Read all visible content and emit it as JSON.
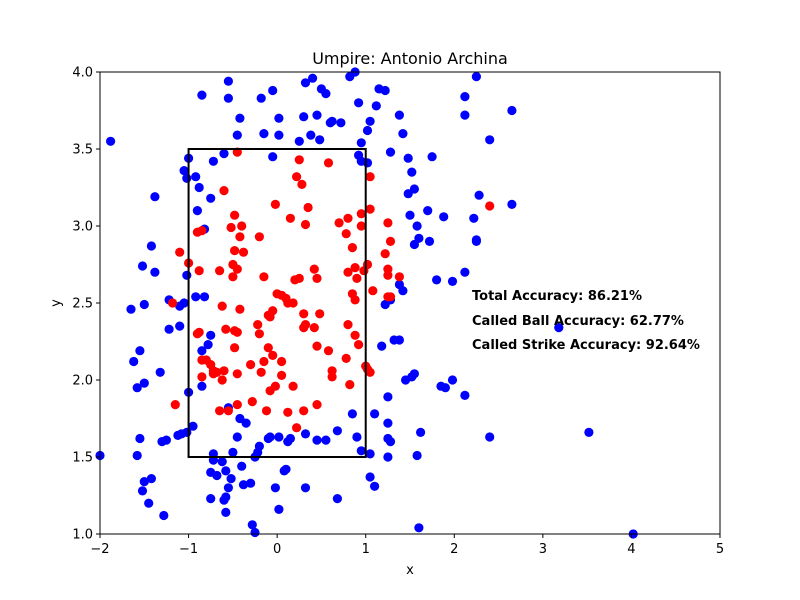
{
  "chart_data": {
    "type": "scatter",
    "title": "Umpire: Antonio Archina",
    "xlabel": "x",
    "ylabel": "y",
    "xlim": [
      -2,
      5
    ],
    "ylim": [
      1.0,
      4.0
    ],
    "x_ticks": [
      -2,
      -1,
      0,
      1,
      2,
      3,
      4,
      5
    ],
    "x_tick_labels": [
      "−2",
      "−1",
      "0",
      "1",
      "2",
      "3",
      "4",
      "5"
    ],
    "y_ticks": [
      1.0,
      1.5,
      2.0,
      2.5,
      3.0,
      3.5,
      4.0
    ],
    "y_tick_labels": [
      "1.0",
      "1.5",
      "2.0",
      "2.5",
      "3.0",
      "3.5",
      "4.0"
    ],
    "grid": false,
    "strike_zone": {
      "x": [
        -1,
        1
      ],
      "y": [
        1.5,
        3.5
      ],
      "color": "#000000"
    },
    "annotations": [
      "Total Accuracy: 86.21%",
      "Called Ball Accuracy: 62.77%",
      "Called Strike Accuracy: 92.64%"
    ],
    "colors": {
      "blue": "#0000ff",
      "red": "#ff0000"
    },
    "series": [
      {
        "color": "#0000ff",
        "points": [
          [
            -1.88,
            3.55
          ],
          [
            -1.52,
            2.74
          ],
          [
            -1.42,
            2.87
          ],
          [
            -1.38,
            2.7
          ],
          [
            -1.38,
            3.19
          ],
          [
            -1.5,
            2.49
          ],
          [
            -1.65,
            2.46
          ],
          [
            -1.55,
            2.19
          ],
          [
            -1.58,
            1.95
          ],
          [
            -1.5,
            1.98
          ],
          [
            -1.62,
            2.12
          ],
          [
            -1.55,
            1.62
          ],
          [
            -1.58,
            1.51
          ],
          [
            -2.0,
            1.51
          ],
          [
            -1.52,
            1.28
          ],
          [
            -1.5,
            1.34
          ],
          [
            -1.42,
            1.36
          ],
          [
            -1.45,
            1.2
          ],
          [
            -1.28,
            1.12
          ],
          [
            -1.3,
            1.6
          ],
          [
            -1.25,
            1.61
          ],
          [
            -1.32,
            2.05
          ],
          [
            -1.22,
            2.52
          ],
          [
            -1.22,
            2.33
          ],
          [
            -1.1,
            2.48
          ],
          [
            -1.1,
            2.35
          ],
          [
            -1.08,
            1.65
          ],
          [
            -1.02,
            1.66
          ],
          [
            -1.0,
            1.92
          ],
          [
            -1.12,
            1.64
          ],
          [
            -0.95,
            1.7
          ],
          [
            -1.02,
            2.68
          ],
          [
            -1.05,
            2.5
          ],
          [
            -1.05,
            3.36
          ],
          [
            -1.02,
            3.31
          ],
          [
            -1.0,
            3.44
          ],
          [
            -0.92,
            3.32
          ],
          [
            -0.88,
            3.25
          ],
          [
            -0.9,
            3.1
          ],
          [
            -0.85,
            3.85
          ],
          [
            -0.82,
            2.54
          ],
          [
            -0.92,
            2.54
          ],
          [
            -0.82,
            2.98
          ],
          [
            -0.75,
            3.18
          ],
          [
            -0.72,
            3.42
          ],
          [
            -0.6,
            3.47
          ],
          [
            -0.55,
            3.83
          ],
          [
            -0.55,
            3.94
          ],
          [
            -0.45,
            3.59
          ],
          [
            -0.42,
            3.7
          ],
          [
            -0.75,
            2.29
          ],
          [
            -0.85,
            2.19
          ],
          [
            -0.78,
            2.23
          ],
          [
            -0.85,
            1.96
          ],
          [
            -0.72,
            1.52
          ],
          [
            -0.75,
            1.4
          ],
          [
            -0.68,
            1.38
          ],
          [
            -0.72,
            1.48
          ],
          [
            -0.62,
            1.47
          ],
          [
            -0.58,
            1.41
          ],
          [
            -0.5,
            1.53
          ],
          [
            -0.55,
            1.82
          ],
          [
            -0.45,
            1.63
          ],
          [
            -0.42,
            1.75
          ],
          [
            -0.4,
            1.44
          ],
          [
            -0.38,
            1.32
          ],
          [
            -0.3,
            1.33
          ],
          [
            -0.25,
            1.5
          ],
          [
            -0.22,
            1.53
          ],
          [
            -0.55,
            1.3
          ],
          [
            -0.58,
            1.24
          ],
          [
            -0.6,
            1.22
          ],
          [
            -0.58,
            1.14
          ],
          [
            -0.75,
            1.23
          ],
          [
            -0.52,
            1.36
          ],
          [
            -0.18,
            3.83
          ],
          [
            -0.15,
            3.6
          ],
          [
            -0.05,
            3.88
          ],
          [
            0.02,
            3.7
          ],
          [
            0.02,
            3.59
          ],
          [
            -0.05,
            3.45
          ],
          [
            0.25,
            3.55
          ],
          [
            0.3,
            3.71
          ],
          [
            0.32,
            3.93
          ],
          [
            0.4,
            3.96
          ],
          [
            0.45,
            3.72
          ],
          [
            0.38,
            3.59
          ],
          [
            0.48,
            3.56
          ],
          [
            0.5,
            3.89
          ],
          [
            0.55,
            3.86
          ],
          [
            0.6,
            3.67
          ],
          [
            0.62,
            3.68
          ],
          [
            0.72,
            3.67
          ],
          [
            0.82,
            3.97
          ],
          [
            0.88,
            4.0
          ],
          [
            0.95,
            3.54
          ],
          [
            0.92,
            3.46
          ],
          [
            0.95,
            3.42
          ],
          [
            1.02,
            3.41
          ],
          [
            1.02,
            3.62
          ],
          [
            0.92,
            3.8
          ],
          [
            1.05,
            3.68
          ],
          [
            1.12,
            3.78
          ],
          [
            1.15,
            3.89
          ],
          [
            1.22,
            3.88
          ],
          [
            1.28,
            3.48
          ],
          [
            1.38,
            3.72
          ],
          [
            1.42,
            3.6
          ],
          [
            1.48,
            3.44
          ],
          [
            1.52,
            3.35
          ],
          [
            1.55,
            3.24
          ],
          [
            1.48,
            3.21
          ],
          [
            1.5,
            3.07
          ],
          [
            1.58,
            3.0
          ],
          [
            1.55,
            2.88
          ],
          [
            1.6,
            2.92
          ],
          [
            1.7,
            3.1
          ],
          [
            1.75,
            3.45
          ],
          [
            1.72,
            2.9
          ],
          [
            1.88,
            3.06
          ],
          [
            2.12,
            3.72
          ],
          [
            2.12,
            3.84
          ],
          [
            2.25,
            3.97
          ],
          [
            2.4,
            3.56
          ],
          [
            2.65,
            3.75
          ],
          [
            2.65,
            3.14
          ],
          [
            2.28,
            3.2
          ],
          [
            2.22,
            3.05
          ],
          [
            2.25,
            2.91
          ],
          [
            2.25,
            2.9
          ],
          [
            2.12,
            2.7
          ],
          [
            1.8,
            2.65
          ],
          [
            1.98,
            2.64
          ],
          [
            1.38,
            2.62
          ],
          [
            1.42,
            2.58
          ],
          [
            1.28,
            2.52
          ],
          [
            1.22,
            2.49
          ],
          [
            1.32,
            2.26
          ],
          [
            1.38,
            2.26
          ],
          [
            1.18,
            2.22
          ],
          [
            1.52,
            2.02
          ],
          [
            1.55,
            2.04
          ],
          [
            1.45,
            2.0
          ],
          [
            1.85,
            1.96
          ],
          [
            1.9,
            1.95
          ],
          [
            1.98,
            2.0
          ],
          [
            2.12,
            1.9
          ],
          [
            1.62,
            1.66
          ],
          [
            1.58,
            1.51
          ],
          [
            1.6,
            1.04
          ],
          [
            1.25,
            1.89
          ],
          [
            1.1,
            1.78
          ],
          [
            1.25,
            1.72
          ],
          [
            1.25,
            1.62
          ],
          [
            1.28,
            1.6
          ],
          [
            1.25,
            1.5
          ],
          [
            1.05,
            1.37
          ],
          [
            1.1,
            1.31
          ],
          [
            1.05,
            1.52
          ],
          [
            0.95,
            1.54
          ],
          [
            0.9,
            1.63
          ],
          [
            0.85,
            1.78
          ],
          [
            0.68,
            1.67
          ],
          [
            0.55,
            1.61
          ],
          [
            0.45,
            1.61
          ],
          [
            0.32,
            1.65
          ],
          [
            0.15,
            1.62
          ],
          [
            0.12,
            1.6
          ],
          [
            0.1,
            1.42
          ],
          [
            0.08,
            1.41
          ],
          [
            0.02,
            1.63
          ],
          [
            -0.1,
            1.62
          ],
          [
            -0.08,
            1.63
          ],
          [
            -0.02,
            1.3
          ],
          [
            -0.2,
            1.57
          ],
          [
            -0.25,
            1.01
          ],
          [
            -0.28,
            1.06
          ],
          [
            0.02,
            1.16
          ],
          [
            0.32,
            1.3
          ],
          [
            0.68,
            1.23
          ],
          [
            2.4,
            1.63
          ],
          [
            3.18,
            2.34
          ],
          [
            3.52,
            1.66
          ],
          [
            4.02,
            1.0
          ],
          [
            -0.35,
            1.72
          ]
        ]
      },
      {
        "color": "#ff0000",
        "points": [
          [
            -0.45,
            3.48
          ],
          [
            -0.6,
            3.23
          ],
          [
            -0.48,
            3.07
          ],
          [
            -0.4,
            3.0
          ],
          [
            -0.42,
            2.93
          ],
          [
            -0.52,
            2.99
          ],
          [
            -0.85,
            2.97
          ],
          [
            -0.9,
            2.96
          ],
          [
            -1.0,
            2.76
          ],
          [
            -1.1,
            2.83
          ],
          [
            -0.88,
            2.71
          ],
          [
            -0.65,
            2.71
          ],
          [
            -0.5,
            2.75
          ],
          [
            -0.48,
            2.84
          ],
          [
            -0.38,
            2.83
          ],
          [
            -0.45,
            2.72
          ],
          [
            -0.5,
            2.67
          ],
          [
            -0.2,
            2.93
          ],
          [
            -0.02,
            3.14
          ],
          [
            0.15,
            3.05
          ],
          [
            0.22,
            3.32
          ],
          [
            0.25,
            3.43
          ],
          [
            0.28,
            3.27
          ],
          [
            0.35,
            3.12
          ],
          [
            0.32,
            3.01
          ],
          [
            0.58,
            3.41
          ],
          [
            0.7,
            3.02
          ],
          [
            0.78,
            2.95
          ],
          [
            0.8,
            3.05
          ],
          [
            0.85,
            2.86
          ],
          [
            0.95,
            3.0
          ],
          [
            1.05,
            3.11
          ],
          [
            1.05,
            3.32
          ],
          [
            0.95,
            3.08
          ],
          [
            1.25,
            3.02
          ],
          [
            1.28,
            2.9
          ],
          [
            1.22,
            2.82
          ],
          [
            1.25,
            2.72
          ],
          [
            1.38,
            2.67
          ],
          [
            1.25,
            2.54
          ],
          [
            1.08,
            2.58
          ],
          [
            1.02,
            2.75
          ],
          [
            0.98,
            2.71
          ],
          [
            0.88,
            2.73
          ],
          [
            0.9,
            2.66
          ],
          [
            0.8,
            2.7
          ],
          [
            0.85,
            2.56
          ],
          [
            0.88,
            2.52
          ],
          [
            0.8,
            2.36
          ],
          [
            0.88,
            2.29
          ],
          [
            0.92,
            2.23
          ],
          [
            0.78,
            2.14
          ],
          [
            0.82,
            1.97
          ],
          [
            0.62,
            2.06
          ],
          [
            0.58,
            2.19
          ],
          [
            0.48,
            2.43
          ],
          [
            0.42,
            2.34
          ],
          [
            0.45,
            2.22
          ],
          [
            0.42,
            2.72
          ],
          [
            0.45,
            2.66
          ],
          [
            0.3,
            2.43
          ],
          [
            0.32,
            2.36
          ],
          [
            0.3,
            2.34
          ],
          [
            0.2,
            2.65
          ],
          [
            0.25,
            2.66
          ],
          [
            0.12,
            2.5
          ],
          [
            0.18,
            2.5
          ],
          [
            0.1,
            2.53
          ],
          [
            0.05,
            2.55
          ],
          [
            0.0,
            2.56
          ],
          [
            -0.05,
            2.45
          ],
          [
            -0.08,
            2.41
          ],
          [
            -0.1,
            2.42
          ],
          [
            -0.15,
            2.67
          ],
          [
            -0.2,
            2.3
          ],
          [
            -0.22,
            2.36
          ],
          [
            -0.1,
            2.21
          ],
          [
            -0.05,
            2.16
          ],
          [
            -0.15,
            2.12
          ],
          [
            0.05,
            2.12
          ],
          [
            -0.3,
            2.1
          ],
          [
            -0.18,
            2.05
          ],
          [
            -0.45,
            2.31
          ],
          [
            -0.48,
            2.21
          ],
          [
            -0.58,
            2.33
          ],
          [
            -0.48,
            2.32
          ],
          [
            -0.62,
            2.48
          ],
          [
            -0.42,
            2.46
          ],
          [
            -0.72,
            2.04
          ],
          [
            -0.6,
            2.06
          ],
          [
            -0.68,
            2.05
          ],
          [
            -0.62,
            2.0
          ],
          [
            -0.85,
            2.13
          ],
          [
            -0.88,
            2.31
          ],
          [
            -0.9,
            2.3
          ],
          [
            -0.8,
            2.13
          ],
          [
            -0.85,
            2.02
          ],
          [
            -0.75,
            2.1
          ],
          [
            -0.72,
            2.06
          ],
          [
            -0.45,
            2.04
          ],
          [
            -0.65,
            1.8
          ],
          [
            -0.55,
            1.8
          ],
          [
            -0.45,
            1.84
          ],
          [
            -0.28,
            1.86
          ],
          [
            -0.12,
            1.8
          ],
          [
            -0.08,
            1.93
          ],
          [
            -0.02,
            1.96
          ],
          [
            0.05,
            2.03
          ],
          [
            0.12,
            1.79
          ],
          [
            0.18,
            1.96
          ],
          [
            0.22,
            1.69
          ],
          [
            0.3,
            1.8
          ],
          [
            0.45,
            1.84
          ],
          [
            0.62,
            2.02
          ],
          [
            1.02,
            2.07
          ],
          [
            1.05,
            2.05
          ],
          [
            1.0,
            2.09
          ],
          [
            -1.15,
            1.84
          ],
          [
            -1.18,
            2.5
          ],
          [
            2.4,
            3.13
          ],
          [
            1.25,
            2.68
          ],
          [
            1.28,
            2.54
          ]
        ]
      }
    ]
  }
}
